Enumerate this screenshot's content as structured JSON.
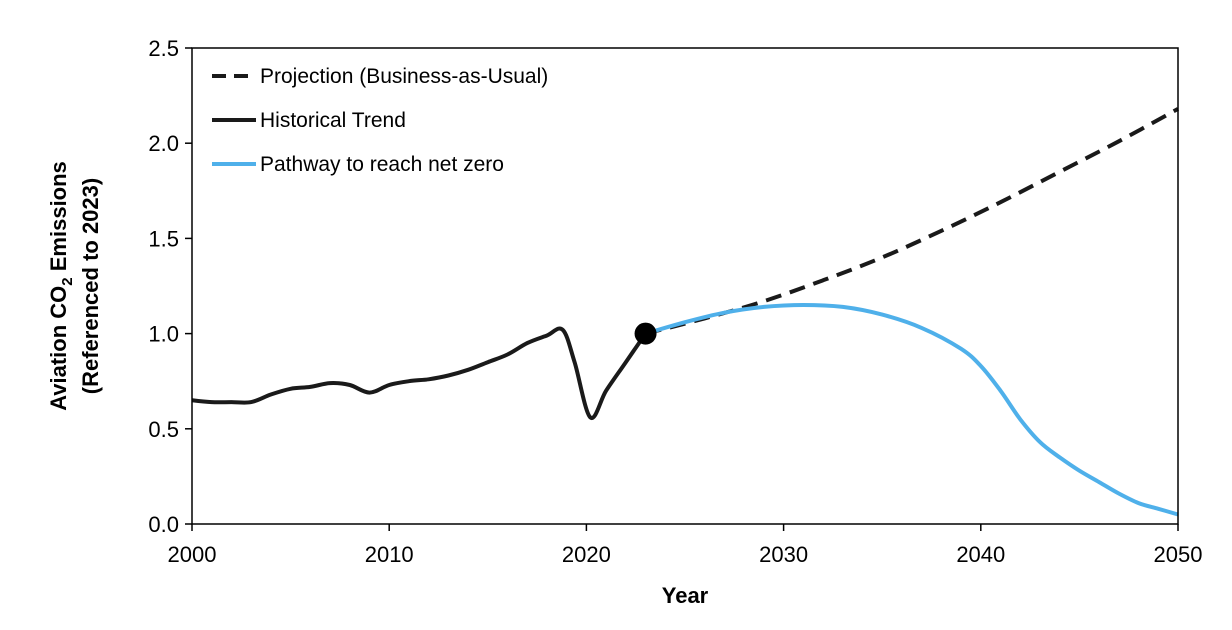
{
  "chart_data": {
    "type": "line",
    "xlabel": "Year",
    "ylabel_line1_prefix": "Aviation CO",
    "ylabel_line1_subscript": "2",
    "ylabel_line1_suffix": " Emissions",
    "ylabel_line2": "(Referenced to 2023)",
    "xlim": [
      2000,
      2050
    ],
    "ylim": [
      0,
      2.5
    ],
    "x_ticks": [
      "2000",
      "2010",
      "2020",
      "2030",
      "2040",
      "2050"
    ],
    "y_ticks": [
      "0.0",
      "0.5",
      "1.0",
      "1.5",
      "2.0",
      "2.5"
    ],
    "grid": false,
    "legend_position": "top-left",
    "marker_point": {
      "x": 2023,
      "y": 1.0
    },
    "series": [
      {
        "name": "Projection (Business-as-Usual)",
        "style": "dashed",
        "color": "#1a1a1a",
        "x": [
          2023,
          2026,
          2029,
          2032,
          2035,
          2038,
          2041,
          2044,
          2047,
          2050
        ],
        "y": [
          1.0,
          1.08,
          1.17,
          1.28,
          1.4,
          1.54,
          1.69,
          1.85,
          2.01,
          2.18
        ]
      },
      {
        "name": "Historical Trend",
        "style": "solid",
        "color": "#1a1a1a",
        "x": [
          2000,
          2001,
          2002,
          2003,
          2004,
          2005,
          2006,
          2007,
          2008,
          2009,
          2010,
          2011,
          2012,
          2013,
          2014,
          2015,
          2016,
          2017,
          2018,
          2018.8,
          2019.4,
          2020.2,
          2021,
          2022,
          2023
        ],
        "y": [
          0.65,
          0.64,
          0.64,
          0.64,
          0.68,
          0.71,
          0.72,
          0.74,
          0.73,
          0.69,
          0.73,
          0.75,
          0.76,
          0.78,
          0.81,
          0.85,
          0.89,
          0.95,
          0.99,
          1.02,
          0.85,
          0.56,
          0.7,
          0.85,
          1.0
        ]
      },
      {
        "name": "Pathway to reach net zero",
        "style": "solid",
        "color": "#4fb0ea",
        "x": [
          2023,
          2025,
          2027,
          2029,
          2031,
          2033,
          2035,
          2037,
          2039,
          2040,
          2041,
          2042,
          2043,
          2044,
          2045,
          2046,
          2047,
          2048,
          2049,
          2050
        ],
        "y": [
          1.0,
          1.06,
          1.11,
          1.14,
          1.15,
          1.14,
          1.1,
          1.03,
          0.92,
          0.83,
          0.7,
          0.55,
          0.43,
          0.35,
          0.28,
          0.22,
          0.16,
          0.11,
          0.08,
          0.05
        ]
      }
    ]
  }
}
